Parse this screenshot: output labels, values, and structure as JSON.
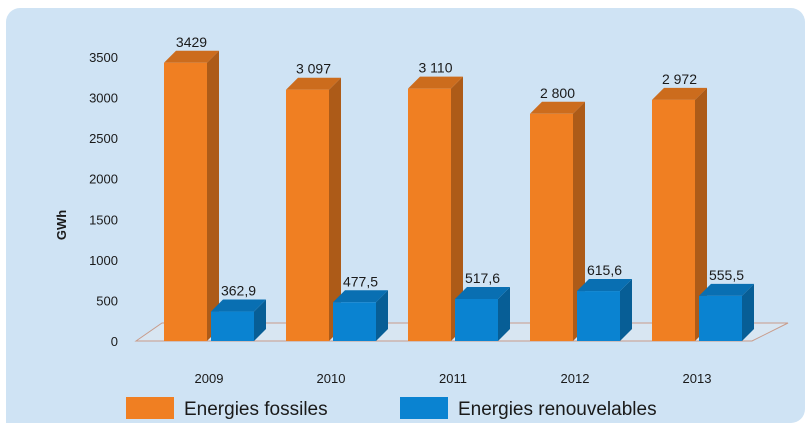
{
  "chart_data": {
    "type": "bar",
    "ylabel": "GWh",
    "xlabel": "",
    "ylim": [
      0,
      3500
    ],
    "yticks": [
      "0",
      "500",
      "1000",
      "1500",
      "2000",
      "2500",
      "3000",
      "3500"
    ],
    "categories": [
      "2009",
      "2010",
      "2011",
      "2012",
      "2013"
    ],
    "series": [
      {
        "name": "Energies fossiles",
        "color": "#f07f22",
        "values": [
          3429,
          3097,
          3110,
          2800,
          2972
        ],
        "labels": [
          "3429",
          "3 097",
          "3 110",
          "2 800",
          "2 972"
        ]
      },
      {
        "name": "Energies renouvelables",
        "color": "#0a83d1",
        "values": [
          362.9,
          477.5,
          517.6,
          615.6,
          555.5
        ],
        "labels": [
          "362,9",
          "477,5",
          "517,6",
          "615,6",
          "555,5"
        ]
      }
    ],
    "grid": false,
    "legend_position": "bottom",
    "style": "3d"
  }
}
